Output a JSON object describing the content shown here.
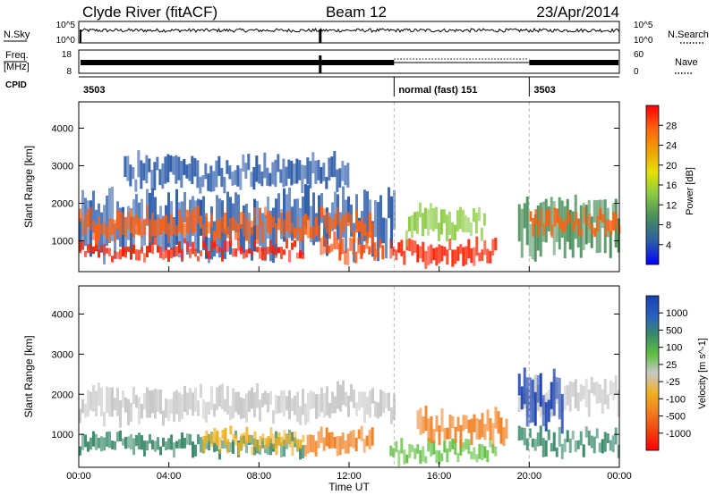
{
  "header": {
    "station": "Clyde River (fitACF)",
    "beam": "Beam 12",
    "date": "23/Apr/2014"
  },
  "panels": {
    "nsky": {
      "left_label": "N.Sky",
      "left_top_tick": "10^5",
      "left_bottom_tick": "10^0",
      "right_label": "N.Search",
      "right_top_tick": "10^5",
      "right_bottom_tick": "10^0"
    },
    "freq": {
      "left_label_1": "Freq.",
      "left_label_2": "[MHz]",
      "left_top_tick": "18",
      "left_bottom_tick": "8",
      "right_label": "Nave",
      "right_top_tick": "60",
      "right_bottom_tick": "0"
    },
    "cpid": {
      "label": "CPID",
      "segments": [
        {
          "text": "3503",
          "start_hour": 0
        },
        {
          "text": "normal (fast) 151",
          "start_hour": 14
        },
        {
          "text": "3503",
          "start_hour": 20
        }
      ]
    }
  },
  "chart_data": [
    {
      "type": "heatmap",
      "name": "power",
      "ylabel": "Slant Range [km]",
      "yticks": [
        1000,
        2000,
        3000,
        4000
      ],
      "ylim": [
        180,
        4700
      ],
      "xlim_hours": [
        0,
        24
      ],
      "colorbar": {
        "label": "Power [dB]",
        "ticks": [
          "4",
          "8",
          "12",
          "16",
          "20",
          "24",
          "28"
        ],
        "colors": [
          "#0000ff",
          "#2a5aa8",
          "#4a8f5a",
          "#8ccc44",
          "#e8e000",
          "#f0a000",
          "#ff6010",
          "#ff0000"
        ]
      },
      "bands": [
        {
          "start": 0,
          "end": 14,
          "rmin": 500,
          "rmax": 2400,
          "color": "#2a5aa8"
        },
        {
          "start": 0,
          "end": 13,
          "rmin": 1000,
          "rmax": 1800,
          "color": "#ff6010"
        },
        {
          "start": 0,
          "end": 10,
          "rmin": 550,
          "rmax": 950,
          "color": "#ff2000"
        },
        {
          "start": 10.7,
          "end": 13.5,
          "rmin": 500,
          "rmax": 1100,
          "color": "#ff5010"
        },
        {
          "start": 13.8,
          "end": 18.5,
          "rmin": 350,
          "rmax": 1000,
          "color": "#ff2000"
        },
        {
          "start": 14.5,
          "end": 18,
          "rmin": 1000,
          "rmax": 1900,
          "color": "#8ccc44"
        },
        {
          "start": 19.5,
          "end": 24,
          "rmin": 500,
          "rmax": 2200,
          "color": "#4a8f5a"
        },
        {
          "start": 20,
          "end": 24,
          "rmin": 1200,
          "rmax": 1800,
          "color": "#ff6010"
        },
        {
          "start": 2,
          "end": 12,
          "rmin": 2400,
          "rmax": 3300,
          "color": "#2a5aa8"
        }
      ]
    },
    {
      "type": "heatmap",
      "name": "velocity",
      "ylabel": "Slant Range [km]",
      "xlabel": "Time UT",
      "yticks": [
        1000,
        2000,
        3000,
        4000
      ],
      "ylim": [
        180,
        4700
      ],
      "xlim_hours": [
        0,
        24
      ],
      "xticklabels": [
        "00:00",
        "04:00",
        "08:00",
        "12:00",
        "16:00",
        "20:00",
        "00:00"
      ],
      "colorbar": {
        "label": "Velocity [m s^-1]",
        "ticks": [
          "1000",
          "500",
          "100",
          "25",
          "-25",
          "-100",
          "-500",
          "-1000"
        ],
        "colors": [
          "#1840b0",
          "#2860c0",
          "#3a8a6a",
          "#60c040",
          "#c8c8c8",
          "#f0b020",
          "#f08020",
          "#f04010",
          "#ff0000"
        ]
      },
      "bands": [
        {
          "start": 0,
          "end": 14,
          "rmin": 1300,
          "rmax": 2200,
          "color": "#c8c8c8"
        },
        {
          "start": 0,
          "end": 10,
          "rmin": 500,
          "rmax": 1000,
          "color": "#3a8a6a"
        },
        {
          "start": 5.5,
          "end": 10,
          "rmin": 600,
          "rmax": 1100,
          "color": "#f0b020"
        },
        {
          "start": 10,
          "end": 13,
          "rmin": 500,
          "rmax": 1100,
          "color": "#f08020"
        },
        {
          "start": 13.8,
          "end": 18.5,
          "rmin": 300,
          "rmax": 800,
          "color": "#60c040"
        },
        {
          "start": 15,
          "end": 19,
          "rmin": 800,
          "rmax": 1600,
          "color": "#f08020"
        },
        {
          "start": 19.5,
          "end": 24,
          "rmin": 500,
          "rmax": 1100,
          "color": "#3a8a6a"
        },
        {
          "start": 19.5,
          "end": 24,
          "rmin": 1500,
          "rmax": 2400,
          "color": "#c8c8c8"
        },
        {
          "start": 19.5,
          "end": 21.5,
          "rmin": 1100,
          "rmax": 2600,
          "color": "#1840b0"
        }
      ]
    }
  ]
}
